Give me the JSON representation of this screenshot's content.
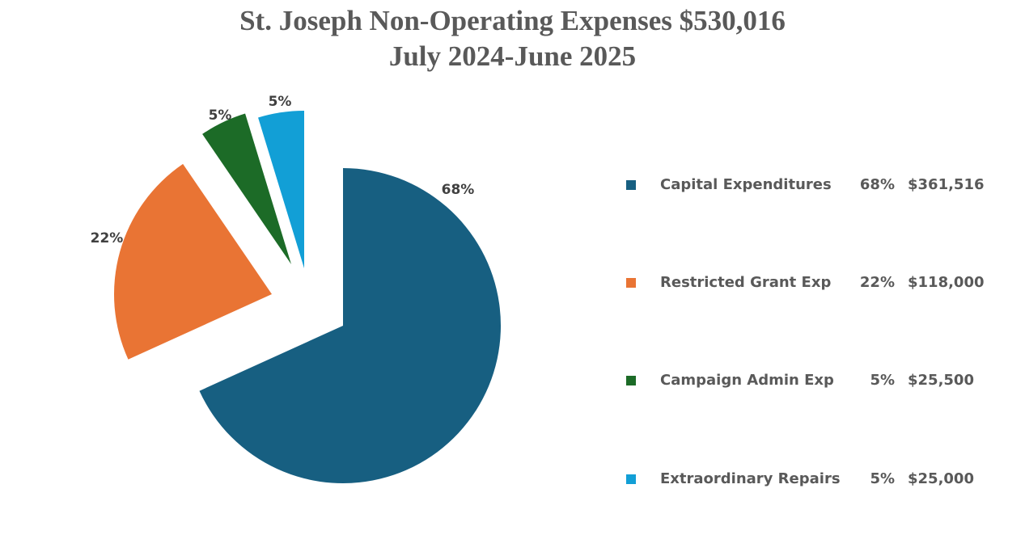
{
  "chart_data": {
    "type": "pie",
    "title": "St. Joseph Non-Operating Expenses $530,016",
    "subtitle": "July 2024-June 2025",
    "total": 530016,
    "slices": [
      {
        "name": "Capital Expenditures",
        "value": 361516,
        "percent_label": "68%",
        "amount_label": "$361,516",
        "color": "#175F81",
        "exploded": false
      },
      {
        "name": "Restricted Grant Exp",
        "value": 118000,
        "percent_label": "22%",
        "amount_label": "$118,000",
        "color": "#E97434",
        "exploded": true
      },
      {
        "name": "Campaign Admin Exp",
        "value": 25500,
        "percent_label": "5%",
        "amount_label": "$25,500",
        "color": "#1C6B27",
        "exploded": true
      },
      {
        "name": "Extraordinary Repairs",
        "value": 25000,
        "percent_label": "5%",
        "amount_label": "$25,000",
        "color": "#129FD6",
        "exploded": true
      }
    ],
    "legend_position": "right",
    "start_angle": "12 o'clock",
    "direction": "clockwise"
  }
}
